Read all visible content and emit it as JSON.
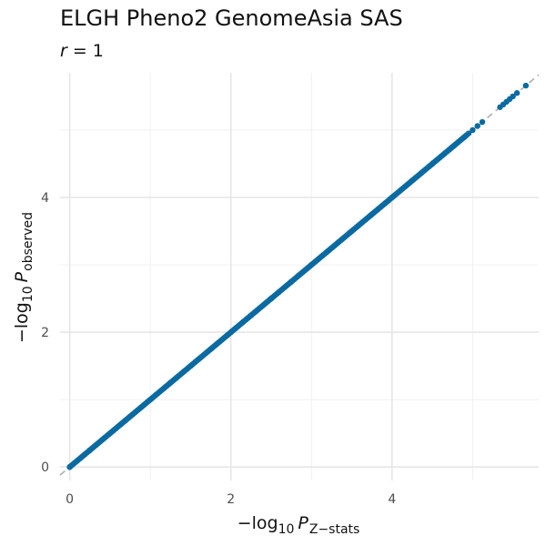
{
  "chart_data": {
    "type": "scatter",
    "title": "ELGH Pheno2 GenomeAsia SAS",
    "subtitle": {
      "var": "r",
      "eq": " = 1"
    },
    "xlabel": {
      "prefix": "−log",
      "base": "10",
      "var": "P",
      "sub": "Z−stats"
    },
    "ylabel": {
      "prefix": "−log",
      "base": "10",
      "var": "P",
      "sub": "observed"
    },
    "xlim": [
      -0.12,
      5.82
    ],
    "ylim": [
      -0.2,
      5.85
    ],
    "xticks": [
      0,
      2,
      4
    ],
    "yticks": [
      0,
      2,
      4
    ],
    "grid": true,
    "reference_line": {
      "slope": 1,
      "intercept": 0,
      "style": "dashed",
      "color": "#aaaaaa"
    },
    "point_color": "#0a6aa1",
    "series": [
      {
        "x": [
          0.0,
          0.25,
          0.5,
          0.75,
          1.0,
          1.25,
          1.5,
          1.75,
          2.0,
          2.25,
          2.5,
          2.75,
          3.0,
          3.25,
          3.5,
          3.75,
          4.0,
          4.25,
          4.5,
          4.75,
          4.9,
          4.95,
          5.0,
          5.06,
          5.12,
          5.34,
          5.38,
          5.42,
          5.46,
          5.5,
          5.55,
          5.66
        ],
        "y": [
          0.0,
          0.25,
          0.5,
          0.75,
          1.0,
          1.25,
          1.5,
          1.75,
          2.0,
          2.25,
          2.5,
          2.75,
          3.0,
          3.25,
          3.5,
          3.75,
          4.0,
          4.25,
          4.5,
          4.75,
          4.9,
          4.95,
          5.0,
          5.06,
          5.12,
          5.34,
          5.38,
          5.42,
          5.46,
          5.5,
          5.55,
          5.66
        ]
      }
    ]
  }
}
